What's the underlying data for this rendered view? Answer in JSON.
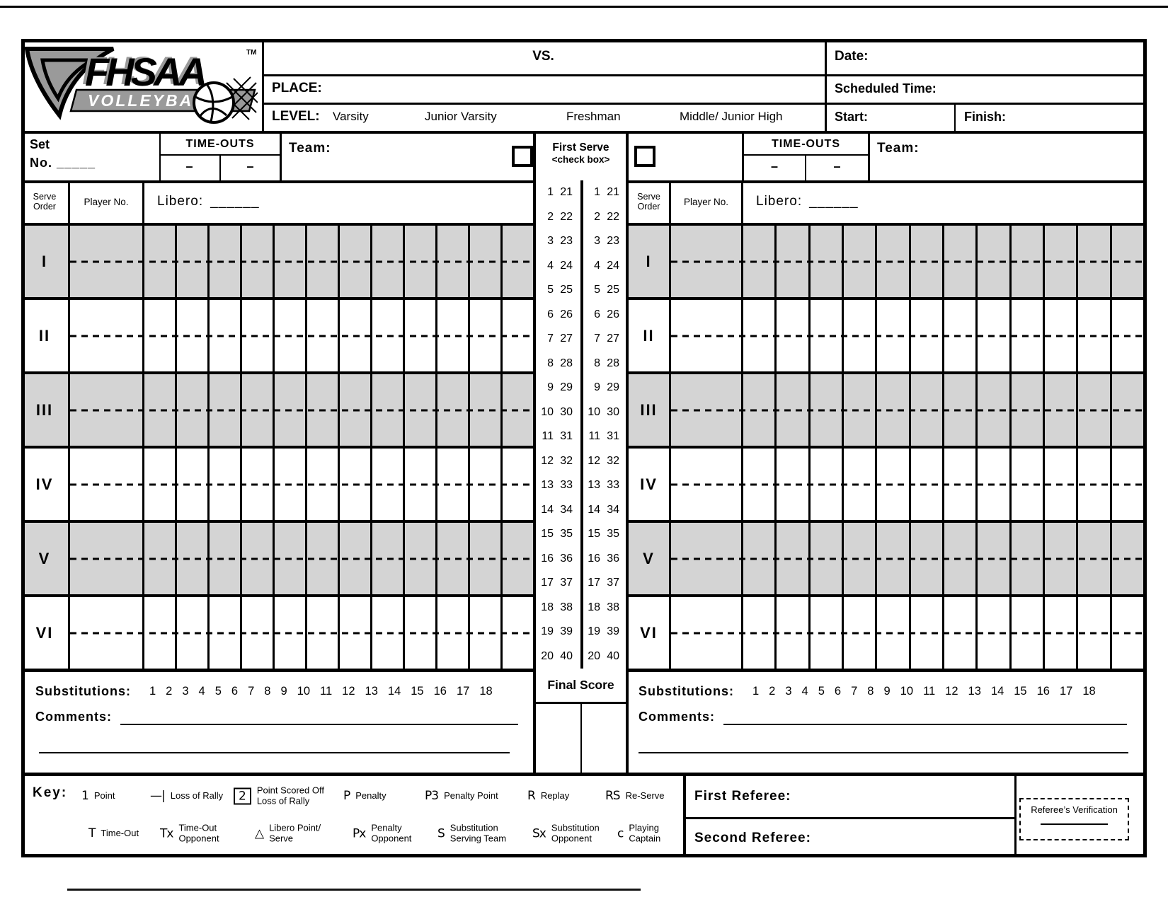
{
  "logo": {
    "brand": "FHSAA",
    "sport": "VOLLEYBALL",
    "tm": "TM"
  },
  "header": {
    "vs_label": "VS.",
    "date_label": "Date:",
    "place_label": "PLACE:",
    "scheduled_label": "Scheduled Time:",
    "level_label": "LEVEL:",
    "levels": [
      "Varsity",
      "Junior Varsity",
      "Freshman",
      "Middle/ Junior High"
    ],
    "start_label": "Start:",
    "finish_label": "Finish:"
  },
  "team_header": {
    "set_label": "Set",
    "no_label": "No.",
    "set_blank": "_____",
    "timeouts_label": "TIME-OUTS",
    "timeout_dash": "–",
    "team_label": "Team:",
    "first_serve_line1": "First Serve",
    "first_serve_line2": "<check box>"
  },
  "grid": {
    "serve_order_header": "Serve\nOrder",
    "player_no_header": "Player No.",
    "libero_label": "Libero:",
    "libero_blank": "______",
    "serve_orders": [
      "I",
      "II",
      "III",
      "IV",
      "V",
      "VI"
    ],
    "score_columns": 12
  },
  "rally_points": {
    "pairs": [
      [
        1,
        21
      ],
      [
        2,
        22
      ],
      [
        3,
        23
      ],
      [
        4,
        24
      ],
      [
        5,
        25
      ],
      [
        6,
        26
      ],
      [
        7,
        27
      ],
      [
        8,
        28
      ],
      [
        9,
        29
      ],
      [
        10,
        30
      ],
      [
        11,
        31
      ],
      [
        12,
        32
      ],
      [
        13,
        33
      ],
      [
        14,
        34
      ],
      [
        15,
        35
      ],
      [
        16,
        36
      ],
      [
        17,
        37
      ],
      [
        18,
        38
      ],
      [
        19,
        39
      ],
      [
        20,
        40
      ]
    ]
  },
  "substitutions": {
    "label": "Substitutions:",
    "numbers": [
      1,
      2,
      3,
      4,
      5,
      6,
      7,
      8,
      9,
      10,
      11,
      12,
      13,
      14,
      15,
      16,
      17,
      18
    ],
    "comments_label": "Comments:"
  },
  "final_score_label": "Final Score",
  "key": {
    "label": "Key:",
    "row1": [
      {
        "symbol": "1",
        "label": "Point"
      },
      {
        "symbol": "—|",
        "label": "Loss of Rally"
      },
      {
        "symbol": "2",
        "label": "Point Scored Off\nLoss of Rally",
        "boxed": true
      },
      {
        "symbol": "P",
        "label": "Penalty"
      },
      {
        "symbol": "P3",
        "label": "Penalty Point"
      },
      {
        "symbol": "R",
        "label": "Replay"
      },
      {
        "symbol": "RS",
        "label": "Re-Serve"
      }
    ],
    "row2": [
      {
        "symbol": "T",
        "label": "Time-Out"
      },
      {
        "symbol": "Tx",
        "label": "Time-Out\nOpponent"
      },
      {
        "symbol": "△",
        "label": "Libero Point/\nServe"
      },
      {
        "symbol": "Px",
        "label": "Penalty\nOpponent"
      },
      {
        "symbol": "S",
        "label": "Substitution\nServing Team"
      },
      {
        "symbol": "Sx",
        "label": "Substitution\nOpponent"
      },
      {
        "symbol": "c",
        "label": "Playing\nCaptain"
      }
    ]
  },
  "referee": {
    "first_label": "First Referee:",
    "second_label": "Second Referee:",
    "verification_label": "Referee’s Verification"
  },
  "colors": {
    "shaded_row": "#d4d4d4",
    "ink": "#000000",
    "logo_gray": "#9a9a9a"
  }
}
